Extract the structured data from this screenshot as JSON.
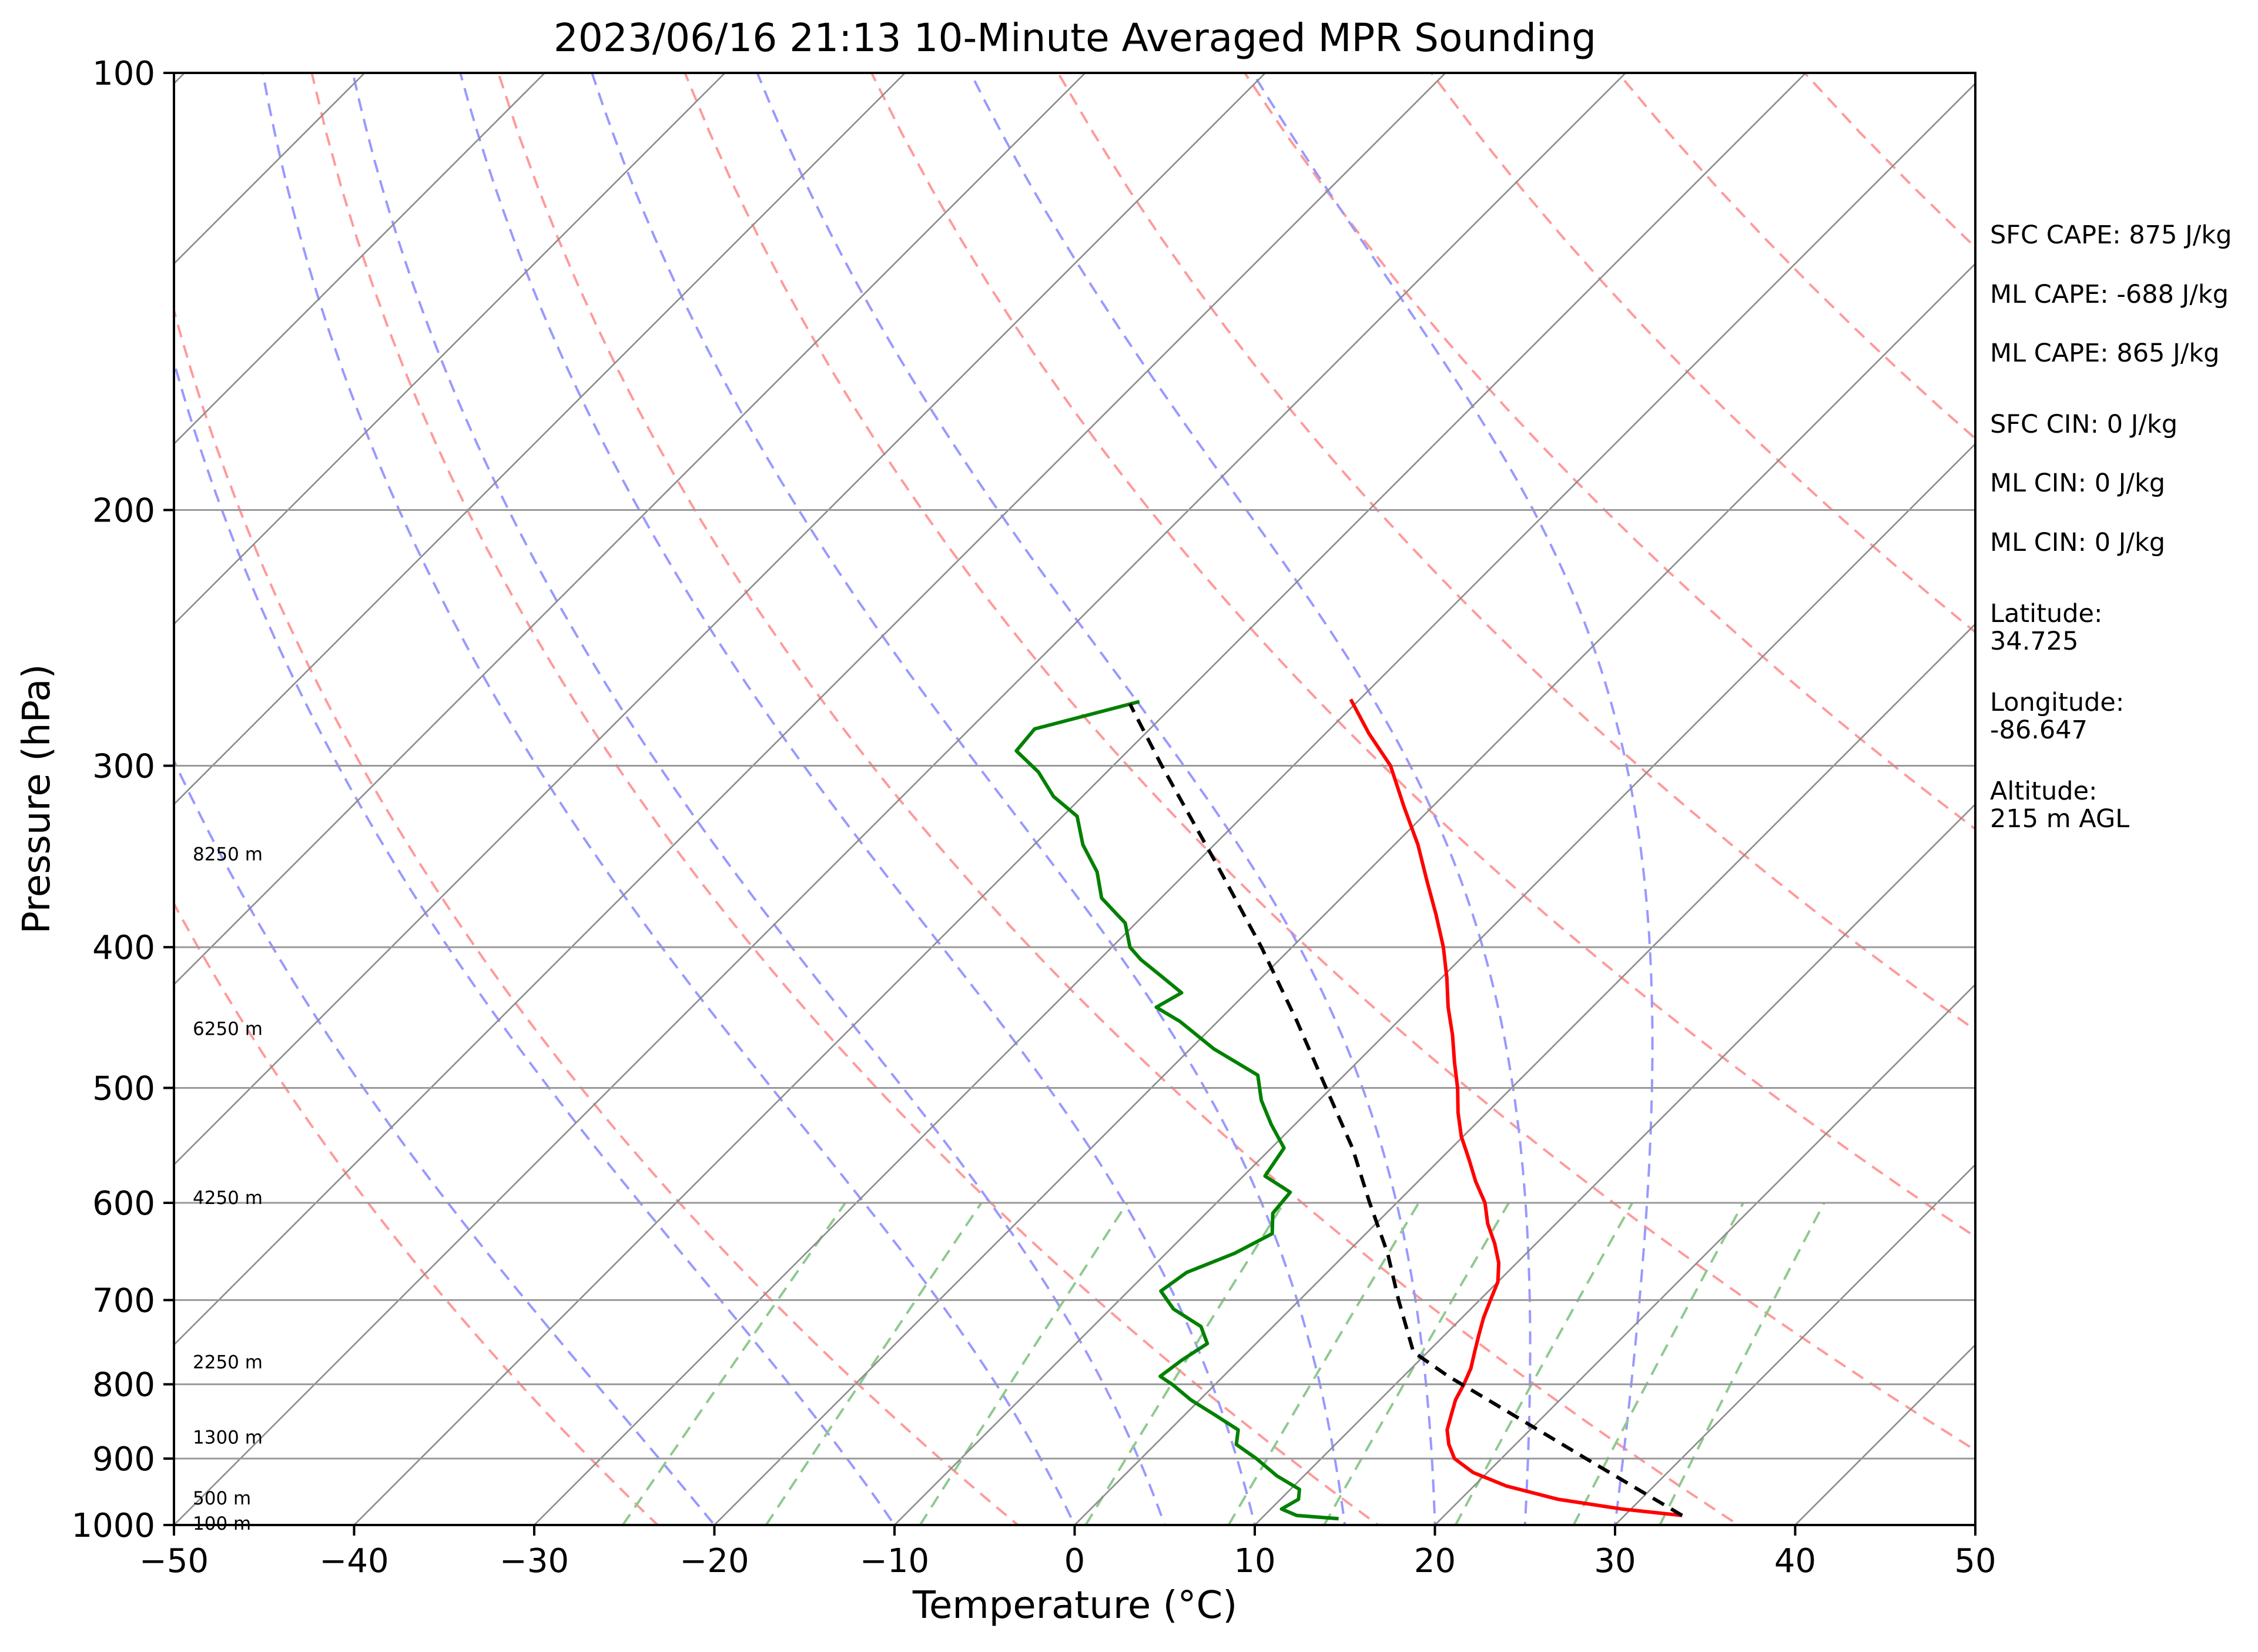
{
  "chart_data": {
    "type": "line",
    "title": "2023/06/16 21:13 10-Minute Averaged MPR Sounding",
    "xlabel": "Temperature (°C)",
    "ylabel": "Pressure (hPa)",
    "xlim": [
      -50,
      50
    ],
    "ylim": [
      1000,
      100
    ],
    "yscale": "log",
    "skew": true,
    "grid": true,
    "x_ticks": [
      -50,
      -40,
      -30,
      -20,
      -10,
      0,
      10,
      20,
      30,
      40,
      50
    ],
    "x_tick_labels": [
      "−50",
      "−40",
      "−30",
      "−20",
      "−10",
      "0",
      "10",
      "20",
      "30",
      "40",
      "50"
    ],
    "y_ticks": [
      100,
      200,
      300,
      400,
      500,
      600,
      700,
      800,
      900,
      1000
    ],
    "y_tick_labels": [
      "100",
      "200",
      "300",
      "400",
      "500",
      "600",
      "700",
      "800",
      "900",
      "1000"
    ],
    "series": [
      {
        "kind": "temperature",
        "color": "#ff0000",
        "style": "solid",
        "points": [
          [
            985,
            33.2
          ],
          [
            975,
            29.5
          ],
          [
            960,
            25.4
          ],
          [
            940,
            21.8
          ],
          [
            920,
            19.2
          ],
          [
            900,
            17.4
          ],
          [
            880,
            16.3
          ],
          [
            860,
            15.4
          ],
          [
            840,
            14.8
          ],
          [
            820,
            14.2
          ],
          [
            800,
            13.8
          ],
          [
            780,
            13.3
          ],
          [
            760,
            12.6
          ],
          [
            740,
            11.9
          ],
          [
            720,
            11.2
          ],
          [
            700,
            10.6
          ],
          [
            680,
            10.0
          ],
          [
            660,
            9.0
          ],
          [
            640,
            7.7
          ],
          [
            620,
            6.2
          ],
          [
            600,
            4.9
          ],
          [
            580,
            3.2
          ],
          [
            560,
            1.6
          ],
          [
            540,
            -0.1
          ],
          [
            520,
            -1.6
          ],
          [
            500,
            -3.0
          ],
          [
            480,
            -4.6
          ],
          [
            460,
            -6.2
          ],
          [
            440,
            -8.0
          ],
          [
            420,
            -9.7
          ],
          [
            400,
            -11.6
          ],
          [
            380,
            -13.8
          ],
          [
            360,
            -16.2
          ],
          [
            340,
            -18.7
          ],
          [
            320,
            -21.6
          ],
          [
            300,
            -24.6
          ],
          [
            285,
            -27.6
          ],
          [
            270,
            -30.5
          ]
        ]
      },
      {
        "kind": "dewpoint",
        "color": "#008000",
        "style": "solid",
        "points": [
          [
            990,
            14.3
          ],
          [
            985,
            11.8
          ],
          [
            975,
            10.6
          ],
          [
            960,
            11.0
          ],
          [
            945,
            10.5
          ],
          [
            925,
            8.5
          ],
          [
            900,
            6.4
          ],
          [
            880,
            4.5
          ],
          [
            860,
            3.8
          ],
          [
            840,
            1.7
          ],
          [
            820,
            -0.5
          ],
          [
            800,
            -2.4
          ],
          [
            790,
            -3.5
          ],
          [
            770,
            -3.2
          ],
          [
            750,
            -2.7
          ],
          [
            730,
            -4.0
          ],
          [
            710,
            -6.5
          ],
          [
            690,
            -8.2
          ],
          [
            670,
            -7.8
          ],
          [
            650,
            -6.2
          ],
          [
            630,
            -5.2
          ],
          [
            610,
            -6.3
          ],
          [
            590,
            -6.5
          ],
          [
            575,
            -8.8
          ],
          [
            550,
            -9.3
          ],
          [
            530,
            -11.3
          ],
          [
            510,
            -13.2
          ],
          [
            490,
            -14.8
          ],
          [
            470,
            -18.7
          ],
          [
            450,
            -22.1
          ],
          [
            440,
            -24.2
          ],
          [
            430,
            -23.6
          ],
          [
            418,
            -25.8
          ],
          [
            408,
            -27.7
          ],
          [
            400,
            -29.0
          ],
          [
            385,
            -30.6
          ],
          [
            370,
            -33.3
          ],
          [
            355,
            -35.0
          ],
          [
            340,
            -37.3
          ],
          [
            325,
            -39.2
          ],
          [
            315,
            -41.6
          ],
          [
            303,
            -43.8
          ],
          [
            293,
            -46.2
          ],
          [
            283,
            -46.4
          ],
          [
            271,
            -42.1
          ]
        ]
      },
      {
        "kind": "parcel",
        "color": "#000000",
        "style": "dashed",
        "points": [
          [
            985,
            33.2
          ],
          [
            900,
            24.7
          ],
          [
            820,
            16.0
          ],
          [
            790,
            12.5
          ],
          [
            760,
            9.2
          ],
          [
            740,
            8.0
          ],
          [
            700,
            5.5
          ],
          [
            650,
            2.3
          ],
          [
            600,
            -1.5
          ],
          [
            550,
            -5.5
          ],
          [
            500,
            -10.3
          ],
          [
            450,
            -15.6
          ],
          [
            400,
            -21.7
          ],
          [
            350,
            -28.9
          ],
          [
            300,
            -37.3
          ],
          [
            272,
            -42.5
          ]
        ]
      }
    ],
    "height_labels": [
      {
        "label": "8250 m",
        "p": 345
      },
      {
        "label": "6250 m",
        "p": 455
      },
      {
        "label": "4250 m",
        "p": 595
      },
      {
        "label": "2250 m",
        "p": 772
      },
      {
        "label": "1300 m",
        "p": 870
      },
      {
        "label": "500 m",
        "p": 958
      },
      {
        "label": "100 m",
        "p": 997
      }
    ],
    "annotations": [
      "SFC CAPE: 875 J/kg",
      "ML CAPE: -688 J/kg",
      "ML CAPE: 865 J/kg",
      "SFC CIN: 0 J/kg",
      "ML CIN: 0 J/kg",
      "ML CIN: 0 J/kg",
      "Latitude:",
      "34.725",
      "Longitude:",
      "-86.647",
      "Altitude:",
      "215 m AGL"
    ],
    "reference_lines": {
      "dry_adiabats_K": [
        250,
        270,
        290,
        310,
        330,
        350,
        370,
        390,
        410,
        430,
        450,
        470,
        490
      ],
      "moist_adiabats_start_C": [
        -20,
        -10,
        0,
        5,
        10,
        15,
        20,
        25,
        30
      ],
      "mixing_ratio_g_per_kg": [
        0.5,
        1,
        2,
        4,
        7,
        10,
        16,
        24,
        32
      ],
      "colors": {
        "dry": "#ff9a9a",
        "moist": "#9999ff",
        "mixing": "#8fc98f",
        "isotherm": "#8c8c8c",
        "isobar": "#999999"
      }
    }
  }
}
